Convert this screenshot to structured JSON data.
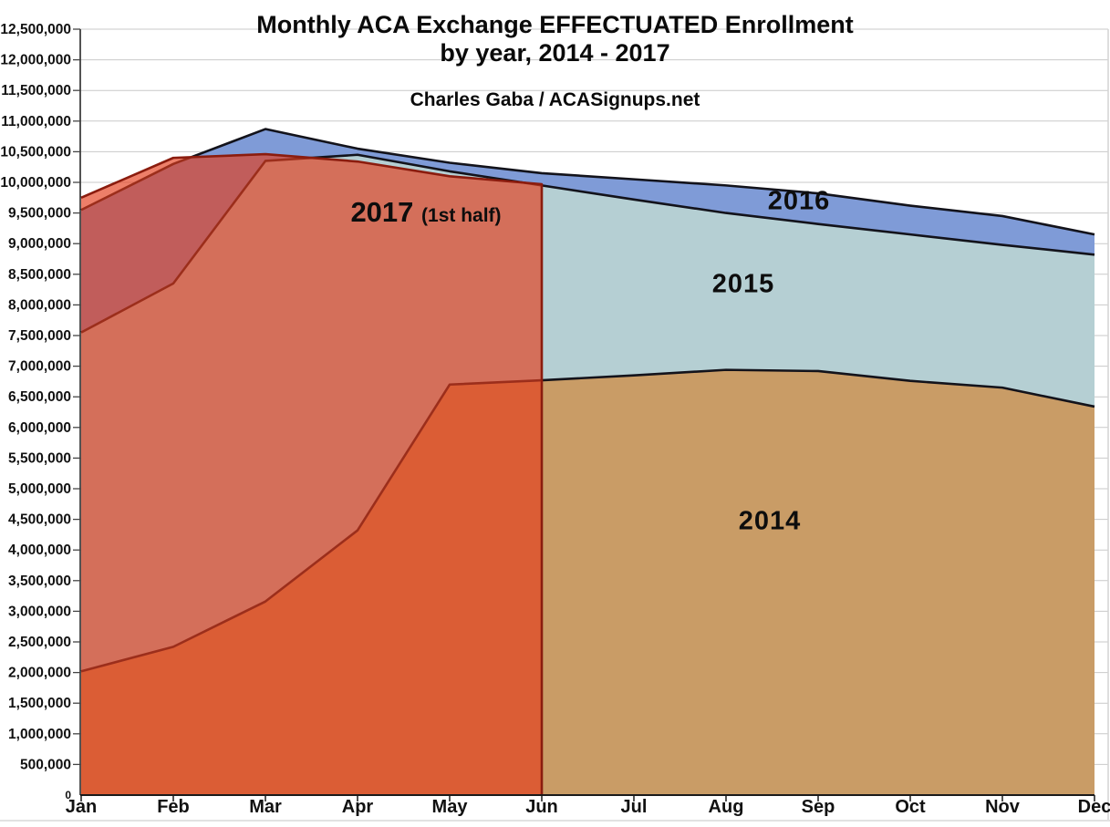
{
  "chart": {
    "title_line1": "Monthly ACA Exchange EFFECTUATED Enrollment",
    "title_line2": "by year, 2014 - 2017",
    "subtitle": "Charles Gaba / ACASignups.net",
    "area_labels": {
      "y2017": "2017",
      "y2017_suffix": "(1st half)",
      "y2016": "2016",
      "y2015": "2015",
      "y2014": "2014"
    },
    "colors": {
      "tan_2014": "#c99c66",
      "teal_2015": "#b5cfd3",
      "blue_2016": "#7f9bd7",
      "red_2017_fill": "rgba(228,60,28,0.66)",
      "red_2017_stroke": "#8b1c0e",
      "series_stroke": "#13131b",
      "gridline": "#c9c9c9",
      "axis": "#1a1a1a",
      "label_text": "#111111"
    }
  },
  "chart_data": {
    "type": "area",
    "categories": [
      "Jan",
      "Feb",
      "Mar",
      "Apr",
      "May",
      "Jun",
      "Jul",
      "Aug",
      "Sep",
      "Oct",
      "Nov",
      "Dec"
    ],
    "series": [
      {
        "name": "2014",
        "months": "Jan-Dec",
        "values": [
          2020000,
          2420000,
          3160000,
          4320000,
          6700000,
          6770000,
          6850000,
          6940000,
          6920000,
          6760000,
          6650000,
          6340000
        ]
      },
      {
        "name": "2015",
        "months": "Jan-Dec",
        "values": [
          7550000,
          8350000,
          10350000,
          10450000,
          10180000,
          9950000,
          9720000,
          9500000,
          9320000,
          9150000,
          8980000,
          8820000
        ]
      },
      {
        "name": "2016",
        "months": "Jan-Dec",
        "values": [
          9550000,
          10300000,
          10870000,
          10550000,
          10320000,
          10150000,
          10050000,
          9950000,
          9820000,
          9620000,
          9450000,
          9150000
        ]
      },
      {
        "name": "2017 (1st half)",
        "months": "Jan-Jun",
        "values": [
          9750000,
          10400000,
          10460000,
          10340000,
          10100000,
          9970000
        ]
      }
    ],
    "draw_order": [
      "2016",
      "2015",
      "2014",
      "2017 (1st half)"
    ],
    "title": "Monthly ACA Exchange EFFECTUATED Enrollment by year, 2014 - 2017",
    "xlabel": "",
    "ylabel": "",
    "ylim": [
      0,
      12500000
    ],
    "ytick_step": 500000,
    "grid": true,
    "legend_position": "labels-inside-areas"
  }
}
